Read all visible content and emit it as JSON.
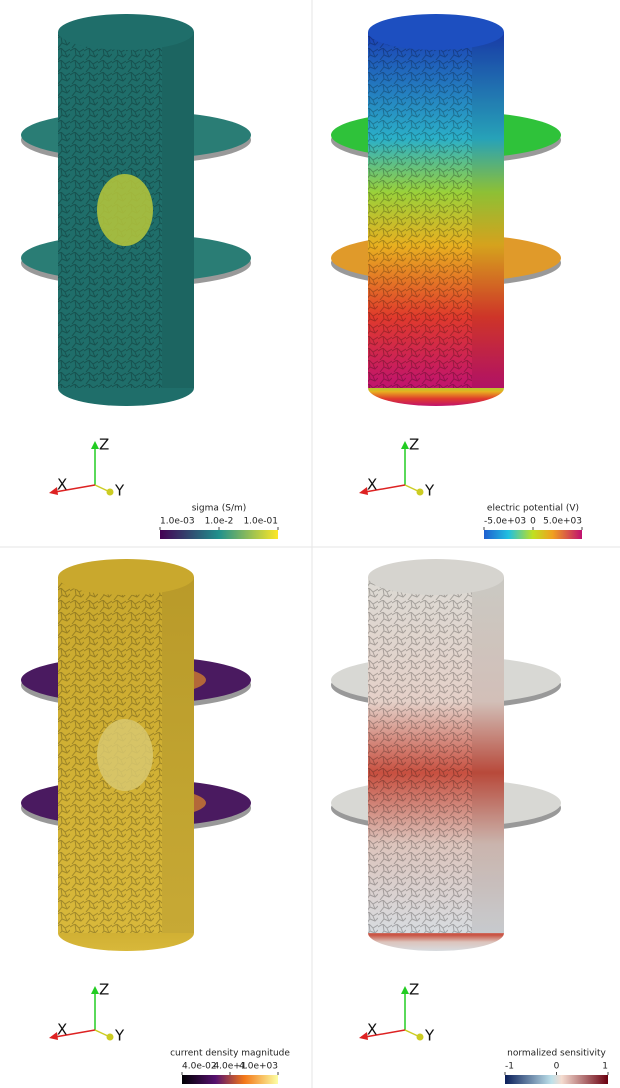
{
  "panels": [
    {
      "colorbar": {
        "title": "sigma (S/m)",
        "ticks": [
          "1.0e-03",
          "1.0e-2",
          "1.0e-01"
        ]
      },
      "axes": {
        "x": "X",
        "y": "Y",
        "z": "Z"
      }
    },
    {
      "colorbar": {
        "title": "electric potential (V)",
        "ticks": [
          "-5.0e+03",
          "0",
          "5.0e+03"
        ]
      },
      "axes": {
        "x": "X",
        "y": "Y",
        "z": "Z"
      }
    },
    {
      "colorbar": {
        "title": "current density magnitude",
        "ticks": [
          "4.0e-02",
          "4.0e+1",
          "4.0e+03"
        ]
      },
      "axes": {
        "x": "X",
        "y": "Y",
        "z": "Z"
      }
    },
    {
      "colorbar": {
        "title": "normalized sensitivity",
        "ticks": [
          "-1",
          "0",
          "1"
        ]
      },
      "axes": {
        "x": "X",
        "y": "Y",
        "z": "Z"
      }
    }
  ]
}
